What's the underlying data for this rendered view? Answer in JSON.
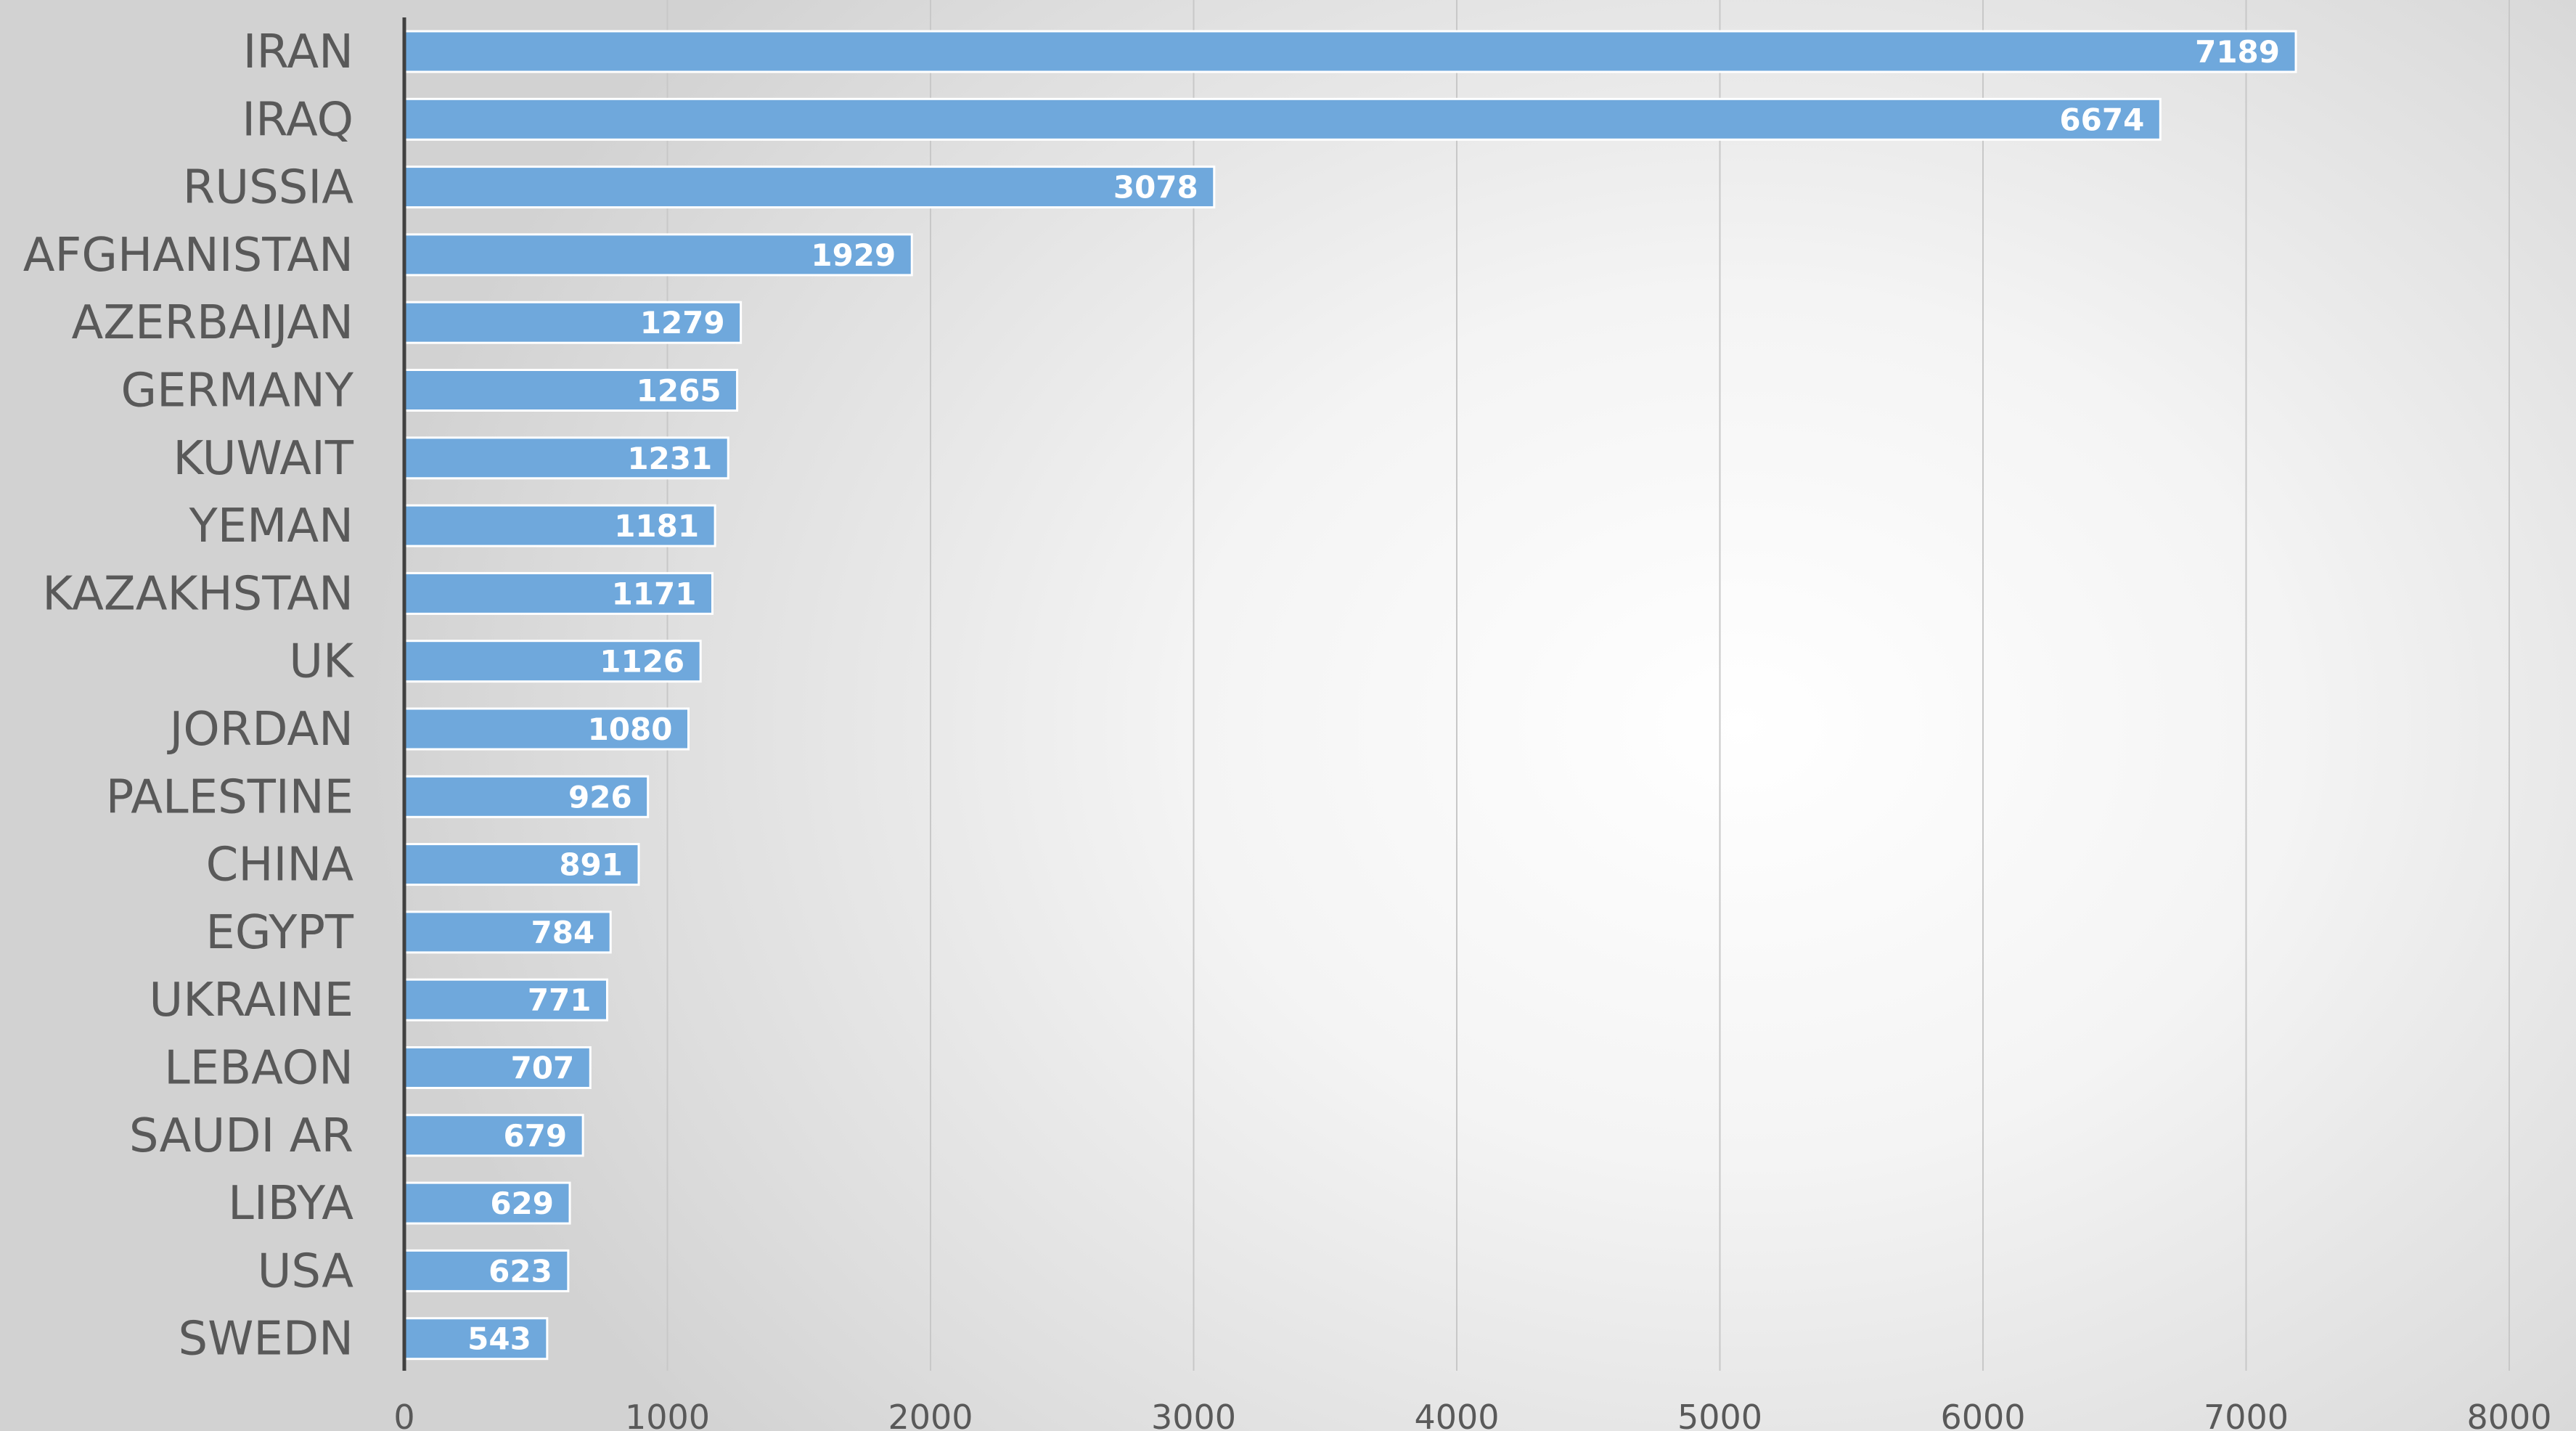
{
  "chart_data": {
    "type": "bar",
    "orientation": "horizontal",
    "categories": [
      "IRAN",
      "IRAQ",
      "RUSSIA",
      "AFGHANISTAN",
      "AZERBAIJAN",
      "GERMANY",
      "KUWAIT",
      "YEMAN",
      "KAZAKHSTAN",
      "UK",
      "JORDAN",
      "PALESTINE",
      "CHINA",
      "EGYPT",
      "UKRAINE",
      "LEBAON",
      "SAUDI AR",
      "LIBYA",
      "USA",
      "SWEDN"
    ],
    "values": [
      7189,
      6674,
      3078,
      1929,
      1279,
      1265,
      1231,
      1181,
      1171,
      1126,
      1080,
      926,
      891,
      784,
      771,
      707,
      679,
      629,
      623,
      543
    ],
    "xlim": [
      0,
      8000
    ],
    "xticks": [
      0,
      1000,
      2000,
      3000,
      4000,
      5000,
      6000,
      7000,
      8000
    ],
    "data_labels": true,
    "grid": "vertical",
    "legend": "none",
    "title": "",
    "xlabel": "",
    "ylabel": "",
    "colors": {
      "bar": "#6fa8dc",
      "bar_edge": "#ffffff",
      "grid": "#c8c8c8",
      "axis": "#404040",
      "label_text": "#595959",
      "data_label_text": "#ffffff"
    }
  }
}
